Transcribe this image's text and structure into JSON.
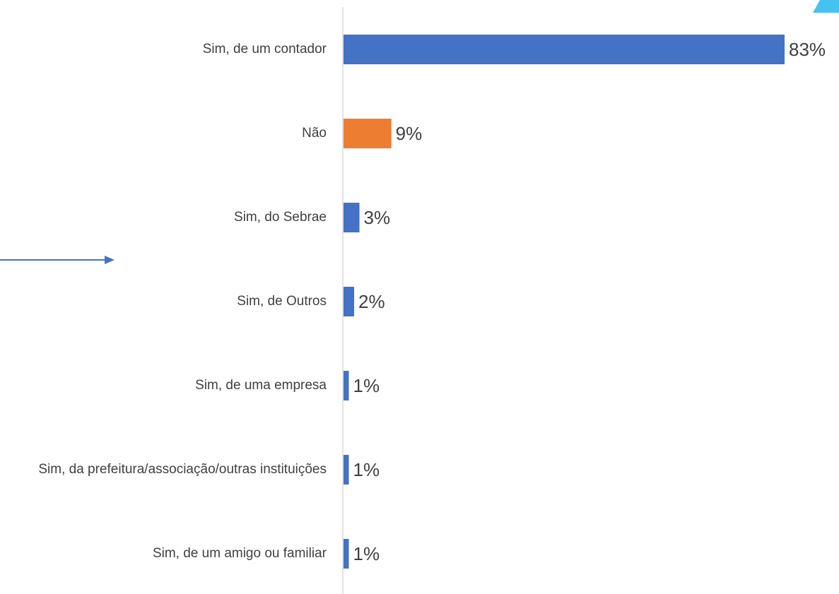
{
  "chart_data": {
    "type": "bar",
    "orientation": "horizontal",
    "categories": [
      "Sim, de um contador",
      "Não",
      "Sim, do Sebrae",
      "Sim, de Outros",
      "Sim, de uma empresa",
      "Sim, da prefeitura/associação/outras instituições",
      "Sim, de um amigo ou familiar"
    ],
    "values": [
      83,
      9,
      3,
      2,
      1,
      1,
      1
    ],
    "value_labels": [
      "83%",
      "9%",
      "3%",
      "2%",
      "1%",
      "1%",
      "1%"
    ],
    "colors": [
      "#4472c4",
      "#ed7d31",
      "#4472c4",
      "#4472c4",
      "#4472c4",
      "#4472c4",
      "#4472c4"
    ]
  }
}
